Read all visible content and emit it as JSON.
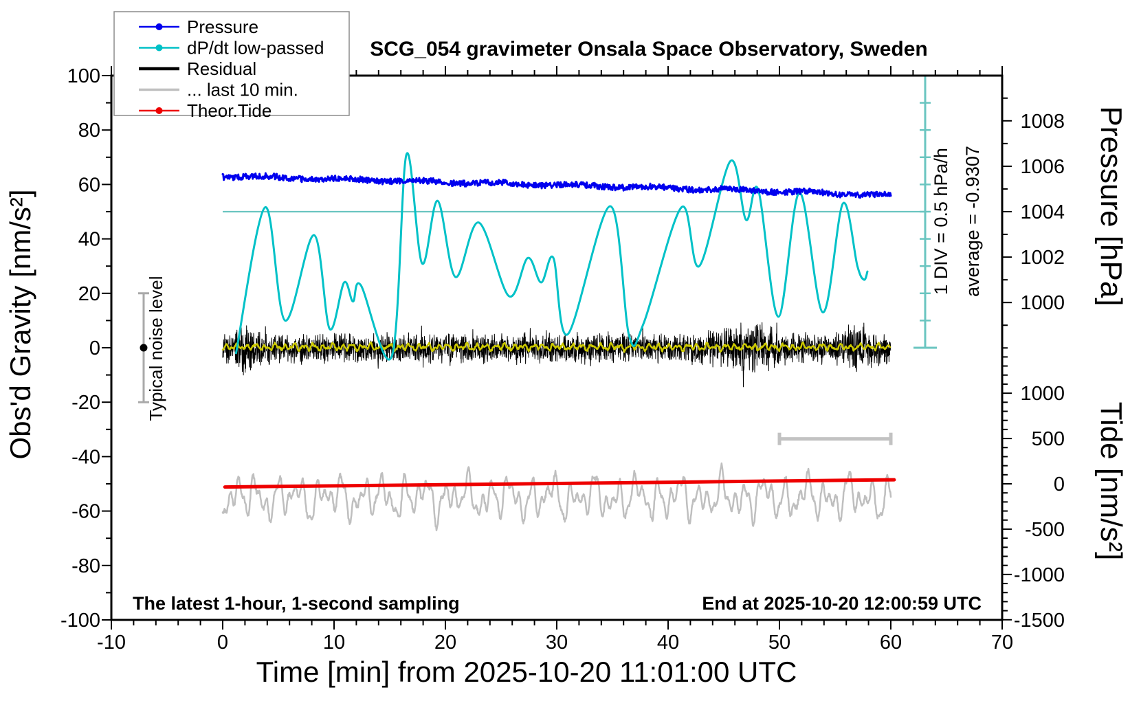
{
  "title": "SCG_054 gravimeter Onsala Space Observatory, Sweden",
  "annotations": {
    "sampling_note": "The latest 1-hour, 1-second sampling",
    "end_time_note": "End at 2025-10-20 12:00:59 UTC",
    "div_scale_note": "1 DIV = 0.5 hPa/h",
    "average_note": "average = -0.9307",
    "noise_label": "Typical noise level"
  },
  "legend": {
    "items": [
      {
        "label": "Pressure",
        "color": "#0000ee",
        "dot": true,
        "sample_width": 2.5
      },
      {
        "label": "dP/dt low-passed",
        "color": "#00c1c7",
        "dot": true,
        "sample_width": 2.5
      },
      {
        "label": "Residual",
        "color": "#000000",
        "dot": false,
        "sample_width": 4.5
      },
      {
        "label": "... last 10 min.",
        "color": "#bfbfbf",
        "dot": false,
        "sample_width": 3.5
      },
      {
        "label": "Theor.Tide",
        "color": "#ee0000",
        "dot": true,
        "sample_width": 2.5
      }
    ]
  },
  "axes": {
    "x": {
      "label": "Time [min] from 2025-10-20 11:01:00 UTC",
      "min": -10,
      "max": 70,
      "minor_step": 2,
      "tick_values": [
        -10,
        0,
        10,
        20,
        30,
        40,
        50,
        60,
        70
      ],
      "tick_labels": [
        "-10",
        "0",
        "10",
        "20",
        "30",
        "40",
        "50",
        "60",
        "70"
      ]
    },
    "y_left": {
      "label": "Obs'd Gravity [nm/s²]",
      "min": -100,
      "max": 100,
      "minor_step": 10,
      "tick_values": [
        -100,
        -80,
        -60,
        -40,
        -20,
        0,
        20,
        40,
        60,
        80,
        100
      ],
      "tick_labels": [
        "-100",
        "-80",
        "-60",
        "-40",
        "-20",
        "0",
        "20",
        "40",
        "60",
        "80",
        "100"
      ]
    },
    "y_right_pressure": {
      "label": "Pressure [hPa]",
      "tick_values": [
        1000,
        1002,
        1004,
        1006,
        1008
      ],
      "tick_labels": [
        "1000",
        "1002",
        "1004",
        "1006",
        "1008"
      ],
      "minor_from": 998,
      "minor_to": 1009,
      "minor_step": 1,
      "anchor_value": 1004,
      "anchor_gravity": 50,
      "hpa_per_span": 2,
      "gravity_per_span": 16.69
    },
    "y_right_tide": {
      "label": "Tide [nm/s²]",
      "tick_values": [
        -1500,
        -1000,
        -500,
        0,
        500,
        1000
      ],
      "tick_labels": [
        "-1500",
        "-1000",
        "-500",
        "0",
        "500",
        "1000"
      ],
      "minor_from": -1400,
      "minor_to": 1400,
      "minor_step": 100,
      "anchor_value": 0,
      "anchor_gravity": -50,
      "tide_per_span": 500,
      "gravity_per_span": 16.65
    }
  },
  "chart_data": {
    "type": "line",
    "x_unit": "minutes",
    "dpdt_scale": {
      "zero_at_gravity": 50,
      "gravity_units_per_div": 10.0,
      "hpa_per_h_per_div": 0.5,
      "divisions": 10,
      "average_hpa_per_h": -0.9307
    },
    "series": [
      {
        "id": "pressure",
        "name": "Pressure",
        "color": "#0000ee",
        "axis": "pressure",
        "width": 3,
        "noise_hpa": 0.13,
        "points": [
          [
            0,
            1005.57
          ],
          [
            10,
            1005.44
          ],
          [
            20,
            1005.3
          ],
          [
            30,
            1005.18
          ],
          [
            40,
            1005.04
          ],
          [
            50,
            1004.9
          ],
          [
            60,
            1004.7
          ]
        ]
      },
      {
        "id": "dpdt",
        "name": "dP/dt low-passed",
        "color": "#00c1c7",
        "axis": "dpdt",
        "width": 3,
        "points": [
          [
            1.2,
            -2.6
          ],
          [
            3.8,
            0.08
          ],
          [
            5.6,
            -2.0
          ],
          [
            8.2,
            -0.43
          ],
          [
            9.6,
            -2.15
          ],
          [
            10.9,
            -1.3
          ],
          [
            11.7,
            -1.65
          ],
          [
            12.4,
            -1.35
          ],
          [
            15.2,
            -2.65
          ],
          [
            16.5,
            1.05
          ],
          [
            17.9,
            -0.95
          ],
          [
            19.3,
            0.2
          ],
          [
            20.9,
            -1.2
          ],
          [
            23.0,
            -0.2
          ],
          [
            25.7,
            -1.55
          ],
          [
            27.4,
            -0.85
          ],
          [
            28.6,
            -1.3
          ],
          [
            29.7,
            -0.85
          ],
          [
            31.0,
            -2.25
          ],
          [
            34.8,
            0.1
          ],
          [
            36.5,
            -2.28
          ],
          [
            37.8,
            -2.05
          ],
          [
            41.2,
            0.08
          ],
          [
            42.8,
            -1.0
          ],
          [
            45.6,
            0.93
          ],
          [
            47.0,
            -0.15
          ],
          [
            48.1,
            0.4
          ],
          [
            49.9,
            -1.93
          ],
          [
            51.8,
            0.35
          ],
          [
            53.9,
            -1.85
          ],
          [
            55.7,
            0.15
          ],
          [
            57.0,
            -1.0
          ],
          [
            57.6,
            -1.25
          ],
          [
            57.9,
            -1.1
          ]
        ]
      },
      {
        "id": "residual",
        "name": "Residual",
        "color": "#000000",
        "axis": "gravity",
        "width": 1,
        "t_range": [
          0,
          60
        ],
        "base_amplitude": 6.3,
        "bursts": [
          {
            "t": 2,
            "amp": 7,
            "w": 0.8
          },
          {
            "t": 47,
            "amp": 5,
            "w": 2.6
          },
          {
            "t": 57,
            "amp": 4,
            "w": 1.3
          }
        ]
      },
      {
        "id": "residual_smooth",
        "name": "Residual low-passed",
        "color": "#ccc900",
        "axis": "gravity",
        "width": 2.5,
        "t_range": [
          0,
          60
        ],
        "center": 0,
        "amplitude": 1.3
      },
      {
        "id": "last10",
        "name": "... last 10 min.",
        "color": "#bfbfbf",
        "axis": "tide",
        "width": 2.5,
        "t_range": [
          0,
          60
        ],
        "center": -150,
        "amplitude": 300
      },
      {
        "id": "theor_tide",
        "name": "Theor.Tide",
        "color": "#ee0000",
        "axis": "tide",
        "width": 5,
        "points": [
          [
            0.2,
            -35
          ],
          [
            15,
            -16
          ],
          [
            30,
            4
          ],
          [
            45,
            24
          ],
          [
            60.3,
            45
          ]
        ]
      }
    ],
    "markers": {
      "noise_bar": {
        "t": -7.1,
        "gravity_center": 0,
        "gravity_halfspan": 20
      },
      "last10_window_bar": {
        "t_from": 50,
        "t_to": 60,
        "gravity": -33.5
      },
      "dpdt_zero_line": {
        "from_t": 0,
        "gravity": 50
      },
      "scale_colors": {
        "bar": "#6ac5c0",
        "noise_bar": "#a9a9a9",
        "window_bar": "#c2c2c2"
      }
    }
  }
}
